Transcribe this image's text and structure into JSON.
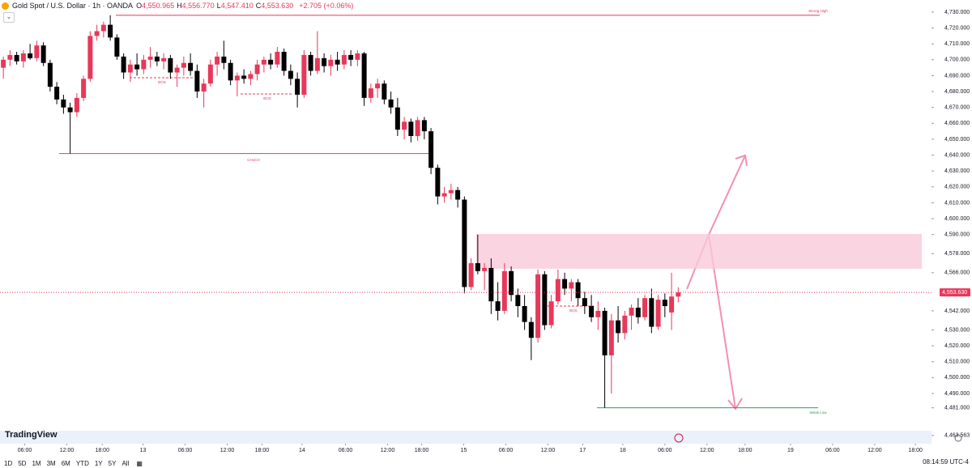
{
  "header": {
    "symbol": "Gold Spot / U.S. Dollar · 1h · OANDA",
    "ohlc": [
      {
        "key": "O",
        "value": "4,550.965"
      },
      {
        "key": "H",
        "value": "4,556.770"
      },
      {
        "key": "L",
        "value": "4,547.410"
      },
      {
        "key": "C",
        "value": "4,553.630"
      }
    ],
    "change": "+2.705 (+0.06%)"
  },
  "chart_data": {
    "type": "candlestick",
    "up_color": "#e8385a",
    "down_color": "#000000",
    "open": [
      4695,
      4700,
      4703,
      4699,
      4704,
      4701,
      4709,
      4698,
      4683,
      4675,
      4670,
      4667,
      4676,
      4688,
      4715,
      4718,
      4722,
      4714,
      4702,
      4692,
      4697,
      4694,
      4700,
      4702,
      4699,
      4701,
      4692,
      4695,
      4698,
      4693,
      4680,
      4685,
      4697,
      4702,
      4698,
      4687,
      4690,
      4688,
      4691,
      4697,
      4700,
      4697,
      4705,
      4693,
      4688,
      4678,
      4703,
      4693,
      4701,
      4696,
      4700,
      4697,
      4703,
      4700,
      4704,
      4676,
      4682,
      4685,
      4675,
      4670,
      4656,
      4661,
      4652,
      4662,
      4655,
      4632,
      4614,
      4616,
      4618,
      4612,
      4557,
      4572,
      4567,
      4569,
      4548,
      4542,
      4567,
      4552,
      4545,
      4535,
      4525,
      4565,
      4533,
      4548,
      4562,
      4556,
      4560,
      4550,
      4545,
      4538,
      4542,
      4514,
      4536,
      4528,
      4539,
      4544,
      4538,
      4550,
      4532,
      4549,
      4541,
      4550.965
    ],
    "high": [
      4702,
      4706,
      4705,
      4706,
      4710,
      4712,
      4711,
      4700,
      4686,
      4678,
      4673,
      4679,
      4690,
      4718,
      4722,
      4724,
      4728,
      4716,
      4704,
      4700,
      4704,
      4703,
      4708,
      4705,
      4704,
      4703,
      4697,
      4702,
      4704,
      4697,
      4688,
      4700,
      4705,
      4712,
      4700,
      4692,
      4694,
      4693,
      4700,
      4702,
      4704,
      4708,
      4707,
      4697,
      4692,
      4706,
      4705,
      4718,
      4704,
      4703,
      4705,
      4706,
      4706,
      4706,
      4705,
      4685,
      4688,
      4687,
      4680,
      4676,
      4664,
      4663,
      4664,
      4664,
      4657,
      4634,
      4620,
      4622,
      4620,
      4614,
      4575,
      4590,
      4572,
      4575,
      4560,
      4572,
      4570,
      4556,
      4552,
      4538,
      4568,
      4567,
      4552,
      4568,
      4566,
      4562,
      4562,
      4554,
      4552,
      4548,
      4544,
      4540,
      4545,
      4542,
      4546,
      4550,
      4552,
      4556,
      4552,
      4553,
      4566,
      4556.77
    ],
    "low": [
      4688,
      4696,
      4697,
      4695,
      4700,
      4699,
      4696,
      4680,
      4672,
      4666,
      4641,
      4664,
      4674,
      4686,
      4712,
      4714,
      4712,
      4700,
      4688,
      4686,
      4690,
      4691,
      4695,
      4696,
      4694,
      4688,
      4683,
      4690,
      4690,
      4676,
      4670,
      4683,
      4690,
      4694,
      4684,
      4677,
      4685,
      4684,
      4687,
      4692,
      4694,
      4695,
      4690,
      4684,
      4670,
      4676,
      4690,
      4691,
      4692,
      4690,
      4693,
      4694,
      4696,
      4696,
      4671,
      4673,
      4676,
      4672,
      4666,
      4652,
      4650,
      4648,
      4649,
      4650,
      4628,
      4609,
      4610,
      4612,
      4607,
      4553,
      4555,
      4565,
      4555,
      4540,
      4536,
      4540,
      4548,
      4538,
      4530,
      4511,
      4522,
      4530,
      4531,
      4546,
      4552,
      4548,
      4545,
      4540,
      4535,
      4530,
      4481,
      4490,
      4522,
      4524,
      4530,
      4534,
      4536,
      4528,
      4530,
      4538,
      4530,
      4547.41
    ],
    "close": [
      4700,
      4703,
      4699,
      4704,
      4701,
      4709,
      4698,
      4683,
      4675,
      4670,
      4667,
      4676,
      4688,
      4715,
      4718,
      4722,
      4714,
      4702,
      4692,
      4697,
      4694,
      4700,
      4702,
      4699,
      4701,
      4692,
      4695,
      4698,
      4693,
      4680,
      4685,
      4697,
      4702,
      4698,
      4687,
      4690,
      4688,
      4691,
      4697,
      4700,
      4697,
      4705,
      4693,
      4688,
      4678,
      4703,
      4693,
      4701,
      4696,
      4700,
      4697,
      4703,
      4700,
      4704,
      4676,
      4682,
      4685,
      4675,
      4670,
      4656,
      4661,
      4652,
      4662,
      4655,
      4632,
      4614,
      4616,
      4618,
      4612,
      4557,
      4572,
      4567,
      4569,
      4548,
      4542,
      4567,
      4552,
      4545,
      4535,
      4525,
      4565,
      4533,
      4548,
      4562,
      4556,
      4560,
      4550,
      4545,
      4538,
      4542,
      4514,
      4536,
      4528,
      4539,
      4544,
      4538,
      4550,
      4532,
      4549,
      4545,
      4551,
      4553.63
    ],
    "ylim": [
      4458.4,
      4737.6
    ],
    "yticks": [
      {
        "value": 4730,
        "label": "4,730.000"
      },
      {
        "value": 4720,
        "label": "4,720.000"
      },
      {
        "value": 4710,
        "label": "4,710.000"
      },
      {
        "value": 4700,
        "label": "4,700.000"
      },
      {
        "value": 4690,
        "label": "4,690.000"
      },
      {
        "value": 4680,
        "label": "4,680.000"
      },
      {
        "value": 4670,
        "label": "4,670.000"
      },
      {
        "value": 4660,
        "label": "4,660.000"
      },
      {
        "value": 4650,
        "label": "4,650.000"
      },
      {
        "value": 4640,
        "label": "4,640.000"
      },
      {
        "value": 4630,
        "label": "4,630.000"
      },
      {
        "value": 4620,
        "label": "4,620.000"
      },
      {
        "value": 4610,
        "label": "4,610.000"
      },
      {
        "value": 4600,
        "label": "4,600.000"
      },
      {
        "value": 4590,
        "label": "4,590.000"
      },
      {
        "value": 4578,
        "label": "4,578.000"
      },
      {
        "value": 4566,
        "label": "4,566.000"
      },
      {
        "value": 4542,
        "label": "4,542.000"
      },
      {
        "value": 4530,
        "label": "4,530.000"
      },
      {
        "value": 4520,
        "label": "4,520.000"
      },
      {
        "value": 4510,
        "label": "4,510.000"
      },
      {
        "value": 4500,
        "label": "4,500.000"
      },
      {
        "value": 4490,
        "label": "4,490.000"
      },
      {
        "value": 4481,
        "label": "4,481.000"
      },
      {
        "value": 4463.563,
        "label": "4,463.563"
      }
    ],
    "last_price": {
      "value": 4553.63,
      "label": "4,553.630"
    },
    "xlim": [
      -0.5,
      138.9
    ],
    "xticks": [
      {
        "value": 3.2,
        "label": "06:00"
      },
      {
        "value": 9.5,
        "label": "12:00"
      },
      {
        "value": 14.8,
        "label": "18:00"
      },
      {
        "value": 20.9,
        "label": "13"
      },
      {
        "value": 27.2,
        "label": "06:00"
      },
      {
        "value": 33.5,
        "label": "12:00"
      },
      {
        "value": 38.7,
        "label": "18:00"
      },
      {
        "value": 44.7,
        "label": "14"
      },
      {
        "value": 51.2,
        "label": "06:00"
      },
      {
        "value": 57.5,
        "label": "12:00"
      },
      {
        "value": 62.6,
        "label": "18:00"
      },
      {
        "value": 68.9,
        "label": "15"
      },
      {
        "value": 75.2,
        "label": "06:00"
      },
      {
        "value": 81.5,
        "label": "12:00"
      },
      {
        "value": 86.7,
        "label": "17"
      },
      {
        "value": 92.7,
        "label": "18"
      },
      {
        "value": 99,
        "label": "06:00"
      },
      {
        "value": 105.3,
        "label": "12:00"
      },
      {
        "value": 111,
        "label": "18:00"
      },
      {
        "value": 117.8,
        "label": "19"
      },
      {
        "value": 124.1,
        "label": "06:00"
      },
      {
        "value": 130.4,
        "label": "12:00"
      },
      {
        "value": 136.5,
        "label": "18:00"
      }
    ],
    "annotations": [
      {
        "text": "Strong High",
        "price": 4728
      },
      {
        "text": "CHoCH",
        "price": 4641
      },
      {
        "text": "Weak Low",
        "price": 4481
      },
      {
        "text": "BOS",
        "price": 4688.7
      },
      {
        "text": "BOS",
        "price": 4678.5
      },
      {
        "text": "BOS",
        "price": 4545
      }
    ],
    "zone": {
      "top": 4590.4,
      "bottom": 4568.5
    }
  },
  "watermark": "TradingView",
  "toolbar": {
    "ranges": [
      "1D",
      "5D",
      "1M",
      "3M",
      "6M",
      "YTD",
      "1Y",
      "5Y",
      "All"
    ],
    "clock": "08:14:59 UTC-4"
  }
}
